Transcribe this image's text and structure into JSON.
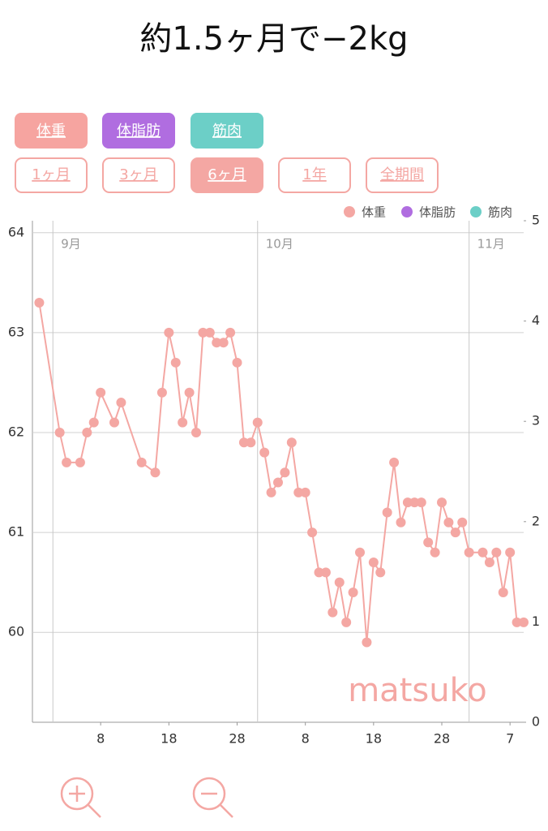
{
  "chart_data": {
    "type": "line",
    "title": "約1.5ヶ月で−2kg",
    "metric_buttons": [
      {
        "label": "体重",
        "color": "#f6a4a0"
      },
      {
        "label": "体脂肪",
        "color": "#b06de0"
      },
      {
        "label": "筋肉",
        "color": "#6ccfc7"
      }
    ],
    "range_buttons": [
      {
        "label": "1ヶ月",
        "selected": false
      },
      {
        "label": "3ヶ月",
        "selected": false
      },
      {
        "label": "6ヶ月",
        "selected": true
      },
      {
        "label": "1年",
        "selected": false
      },
      {
        "label": "全期間",
        "selected": false
      }
    ],
    "x": [
      "08-30",
      "09-02",
      "09-03",
      "09-05",
      "09-06",
      "09-07",
      "09-08",
      "09-10",
      "09-11",
      "09-14",
      "09-16",
      "09-17",
      "09-18",
      "09-19",
      "09-20",
      "09-21",
      "09-22",
      "09-23",
      "09-24",
      "09-25",
      "09-26",
      "09-27",
      "09-28",
      "09-29",
      "09-30",
      "10-01",
      "10-02",
      "10-03",
      "10-04",
      "10-05",
      "10-06",
      "10-07",
      "10-08",
      "10-09",
      "10-10",
      "10-11",
      "10-12",
      "10-13",
      "10-14",
      "10-15",
      "10-16",
      "10-17",
      "10-18",
      "10-19",
      "10-20",
      "10-21",
      "10-22",
      "10-23",
      "10-24",
      "10-25",
      "10-26",
      "10-27",
      "10-28",
      "10-29",
      "10-30",
      "10-31",
      "11-01",
      "11-03",
      "11-04",
      "11-05",
      "11-06",
      "11-07",
      "11-08",
      "11-09"
    ],
    "series": [
      {
        "name": "体重",
        "color": "#f4a7a3",
        "axis": "y",
        "values": [
          63.3,
          62.0,
          61.7,
          61.7,
          62.0,
          62.1,
          62.4,
          62.1,
          62.3,
          61.7,
          61.6,
          62.4,
          63.0,
          62.7,
          62.1,
          62.4,
          62.0,
          63.0,
          63.0,
          62.9,
          62.9,
          63.0,
          62.7,
          61.9,
          61.9,
          62.1,
          61.8,
          61.4,
          61.5,
          61.6,
          61.9,
          61.4,
          61.4,
          61.0,
          60.6,
          60.6,
          60.2,
          60.5,
          60.1,
          60.4,
          60.8,
          59.9,
          60.7,
          60.6,
          61.2,
          61.7,
          61.1,
          61.3,
          61.3,
          61.3,
          60.9,
          60.8,
          61.3,
          61.1,
          61.0,
          61.1,
          60.8,
          60.8,
          60.7,
          60.8,
          60.4,
          60.8,
          60.1,
          60.1
        ]
      }
    ],
    "other_series": [
      {
        "name": "体脂肪",
        "color": "#b06de0"
      },
      {
        "name": "筋肉",
        "color": "#6ccfc7"
      }
    ],
    "xlim": [
      "08-29",
      "11-09"
    ],
    "xticks": [
      {
        "value": "09-08",
        "label": "8"
      },
      {
        "value": "09-18",
        "label": "18"
      },
      {
        "value": "09-28",
        "label": "28"
      },
      {
        "value": "10-08",
        "label": "8"
      },
      {
        "value": "10-18",
        "label": "18"
      },
      {
        "value": "10-28",
        "label": "28"
      },
      {
        "value": "11-07",
        "label": "7"
      }
    ],
    "month_ticks": [
      {
        "value": "09-01",
        "label": "9月"
      },
      {
        "value": "10-01",
        "label": "10月"
      },
      {
        "value": "11-01",
        "label": "11月"
      }
    ],
    "ylim": [
      59.1,
      64.12
    ],
    "yticks": [
      60,
      61,
      62,
      63,
      64
    ],
    "y2lim": [
      0,
      5
    ],
    "y2ticks": [
      0,
      1,
      2,
      3,
      4,
      5
    ],
    "grid": true,
    "legend": "top-right",
    "watermark": "matsuko"
  }
}
